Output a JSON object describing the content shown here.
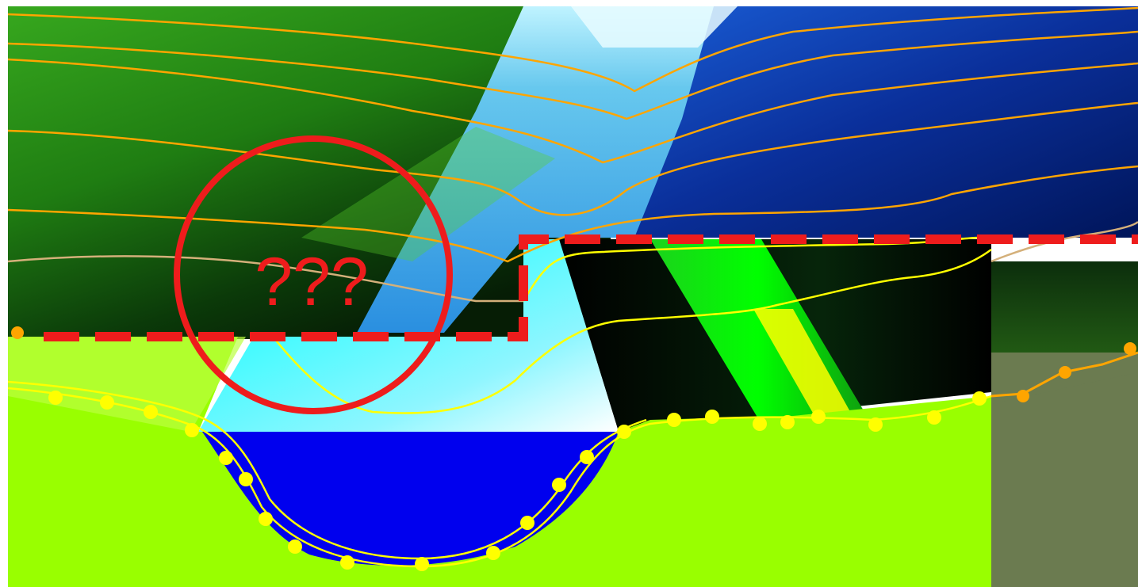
{
  "annotation": {
    "label": "???",
    "color": "#ee1c1c"
  },
  "palette": {
    "field_green": "#99ff00",
    "water_blue": "#0000ee",
    "water_cyan": "#00ffff",
    "contour_orange": "#ffa500",
    "contour_yellow": "#ffff00",
    "dark_green": "#0a3d0a",
    "deep_blue": "#001a66",
    "olive": "#6b7b50",
    "black": "#000000"
  }
}
